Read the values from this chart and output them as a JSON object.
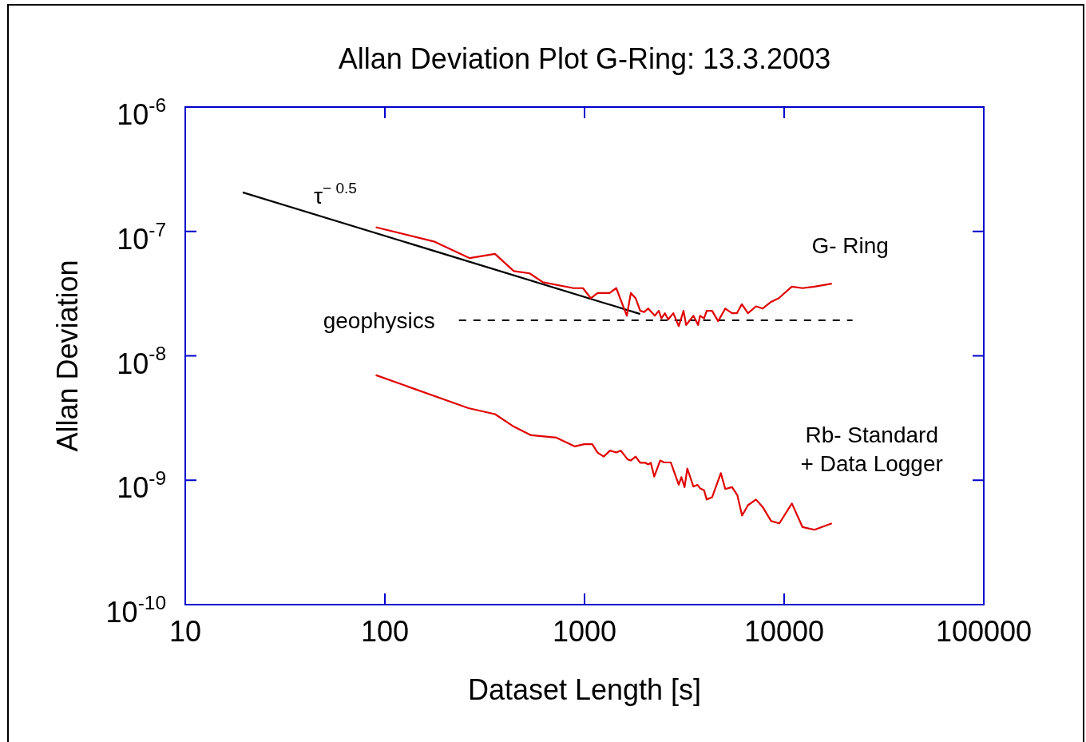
{
  "chart_data": {
    "type": "line",
    "title": "Allan Deviation Plot G-Ring: 13.3.2003",
    "xlabel": "Dataset Length [s]",
    "ylabel": "Allan Deviation",
    "log": "xy",
    "legend": false,
    "grid": false,
    "xlim": [
      10,
      100000
    ],
    "xticks": [
      10,
      100,
      1000,
      10000,
      100000
    ],
    "ylim": [
      1e-10,
      1e-06
    ],
    "yticks": [
      {
        "value": 1e-10,
        "label": "10$^{-10}$"
      },
      {
        "value": 1e-09,
        "label": "10$^{-9}$"
      },
      {
        "value": 1e-08,
        "label": "10$^{-8}$"
      },
      {
        "value": 1e-07,
        "label": "10$^{-7}$"
      },
      {
        "value": 1e-06,
        "label": "10$^{-6}$"
      }
    ],
    "series": [
      {
        "name": "G- Ring",
        "color": "#e00000",
        "x": [
          90,
          176,
          266,
          356,
          442,
          531,
          619,
          881,
          982,
          1076,
          1162,
          1334,
          1442,
          1629,
          1706,
          1803,
          1901,
          1990,
          2084,
          2249,
          2355,
          2427,
          2529,
          2624,
          2786,
          2965,
          3133,
          3228,
          3510,
          3708,
          3793,
          3971,
          4093,
          4355,
          4670,
          5072,
          5480,
          5794,
          6138,
          6590,
          7228,
          7798,
          8551,
          9376,
          10930,
          12360,
          14190,
          17330
        ],
        "values": [
          1.08e-07,
          8.3e-08,
          6.1e-08,
          6.6e-08,
          4.8e-08,
          4.6e-08,
          3.9e-08,
          3.5e-08,
          3.5e-08,
          2.9e-08,
          3.2e-08,
          3.2e-08,
          3.5e-08,
          2.1e-08,
          3.2e-08,
          2.9e-08,
          2.3e-08,
          2.25e-08,
          2.4e-08,
          2.1e-08,
          2.3e-08,
          2e-08,
          2.2e-08,
          1.96e-08,
          2.2e-08,
          1.73e-08,
          2.3e-08,
          1.77e-08,
          2.1e-08,
          1.77e-08,
          2.1e-08,
          2e-08,
          2.3e-08,
          2.3e-08,
          1.9e-08,
          2.4e-08,
          2.2e-08,
          2.2e-08,
          2.6e-08,
          2.2e-08,
          2.5e-08,
          2.4e-08,
          2.7e-08,
          2.9e-08,
          3.6e-08,
          3.5e-08,
          3.6e-08,
          3.8e-08
        ]
      },
      {
        "name": "Rb- Standard\n+ Data Logger",
        "color": "#e00000",
        "x": [
          90,
          262,
          356,
          442,
          540,
          723,
          895,
          997,
          1094,
          1162,
          1247,
          1343,
          1442,
          1518,
          1644,
          1706,
          1803,
          1901,
          2020,
          2084,
          2148,
          2235,
          2393,
          2504,
          2704,
          2965,
          3056,
          3171,
          3272,
          3510,
          3674,
          3793,
          3971,
          4093,
          4355,
          4818,
          5072,
          5480,
          5825,
          6153,
          6590,
          7228,
          7798,
          8606,
          9462,
          10930,
          12360,
          14190,
          17330
        ],
        "values": [
          7e-09,
          3.8e-09,
          3.4e-09,
          2.7e-09,
          2.3e-09,
          2.2e-09,
          1.87e-09,
          1.95e-09,
          1.95e-09,
          1.67e-09,
          1.55e-09,
          1.73e-09,
          1.67e-09,
          1.73e-09,
          1.47e-09,
          1.44e-09,
          1.55e-09,
          1.38e-09,
          1.38e-09,
          1.34e-09,
          1.38e-09,
          1.07e-09,
          1.44e-09,
          1.39e-09,
          1.39e-09,
          9.2e-10,
          1.06e-09,
          8.8e-10,
          1.24e-09,
          8.9e-10,
          9.2e-10,
          8.6e-10,
          8.3e-10,
          7e-10,
          7.3e-10,
          1.14e-09,
          8.5e-10,
          8.8e-10,
          7.6e-10,
          5.2e-10,
          6.3e-10,
          7e-10,
          6.1e-10,
          4.7e-10,
          4.5e-10,
          6.5e-10,
          4.2e-10,
          4e-10,
          4.5e-10
        ]
      },
      {
        "name": "τ$^{− 0.5}$",
        "color": "#000000",
        "x": [
          19.4,
          1900
        ],
        "values": [
          2.06e-07,
          2.17e-08
        ]
      },
      {
        "name": "geophysics",
        "color": "#000000",
        "line_style": "dashed",
        "x": [
          235,
          22000
        ],
        "values": [
          1.93e-08,
          1.93e-08
        ]
      }
    ]
  }
}
